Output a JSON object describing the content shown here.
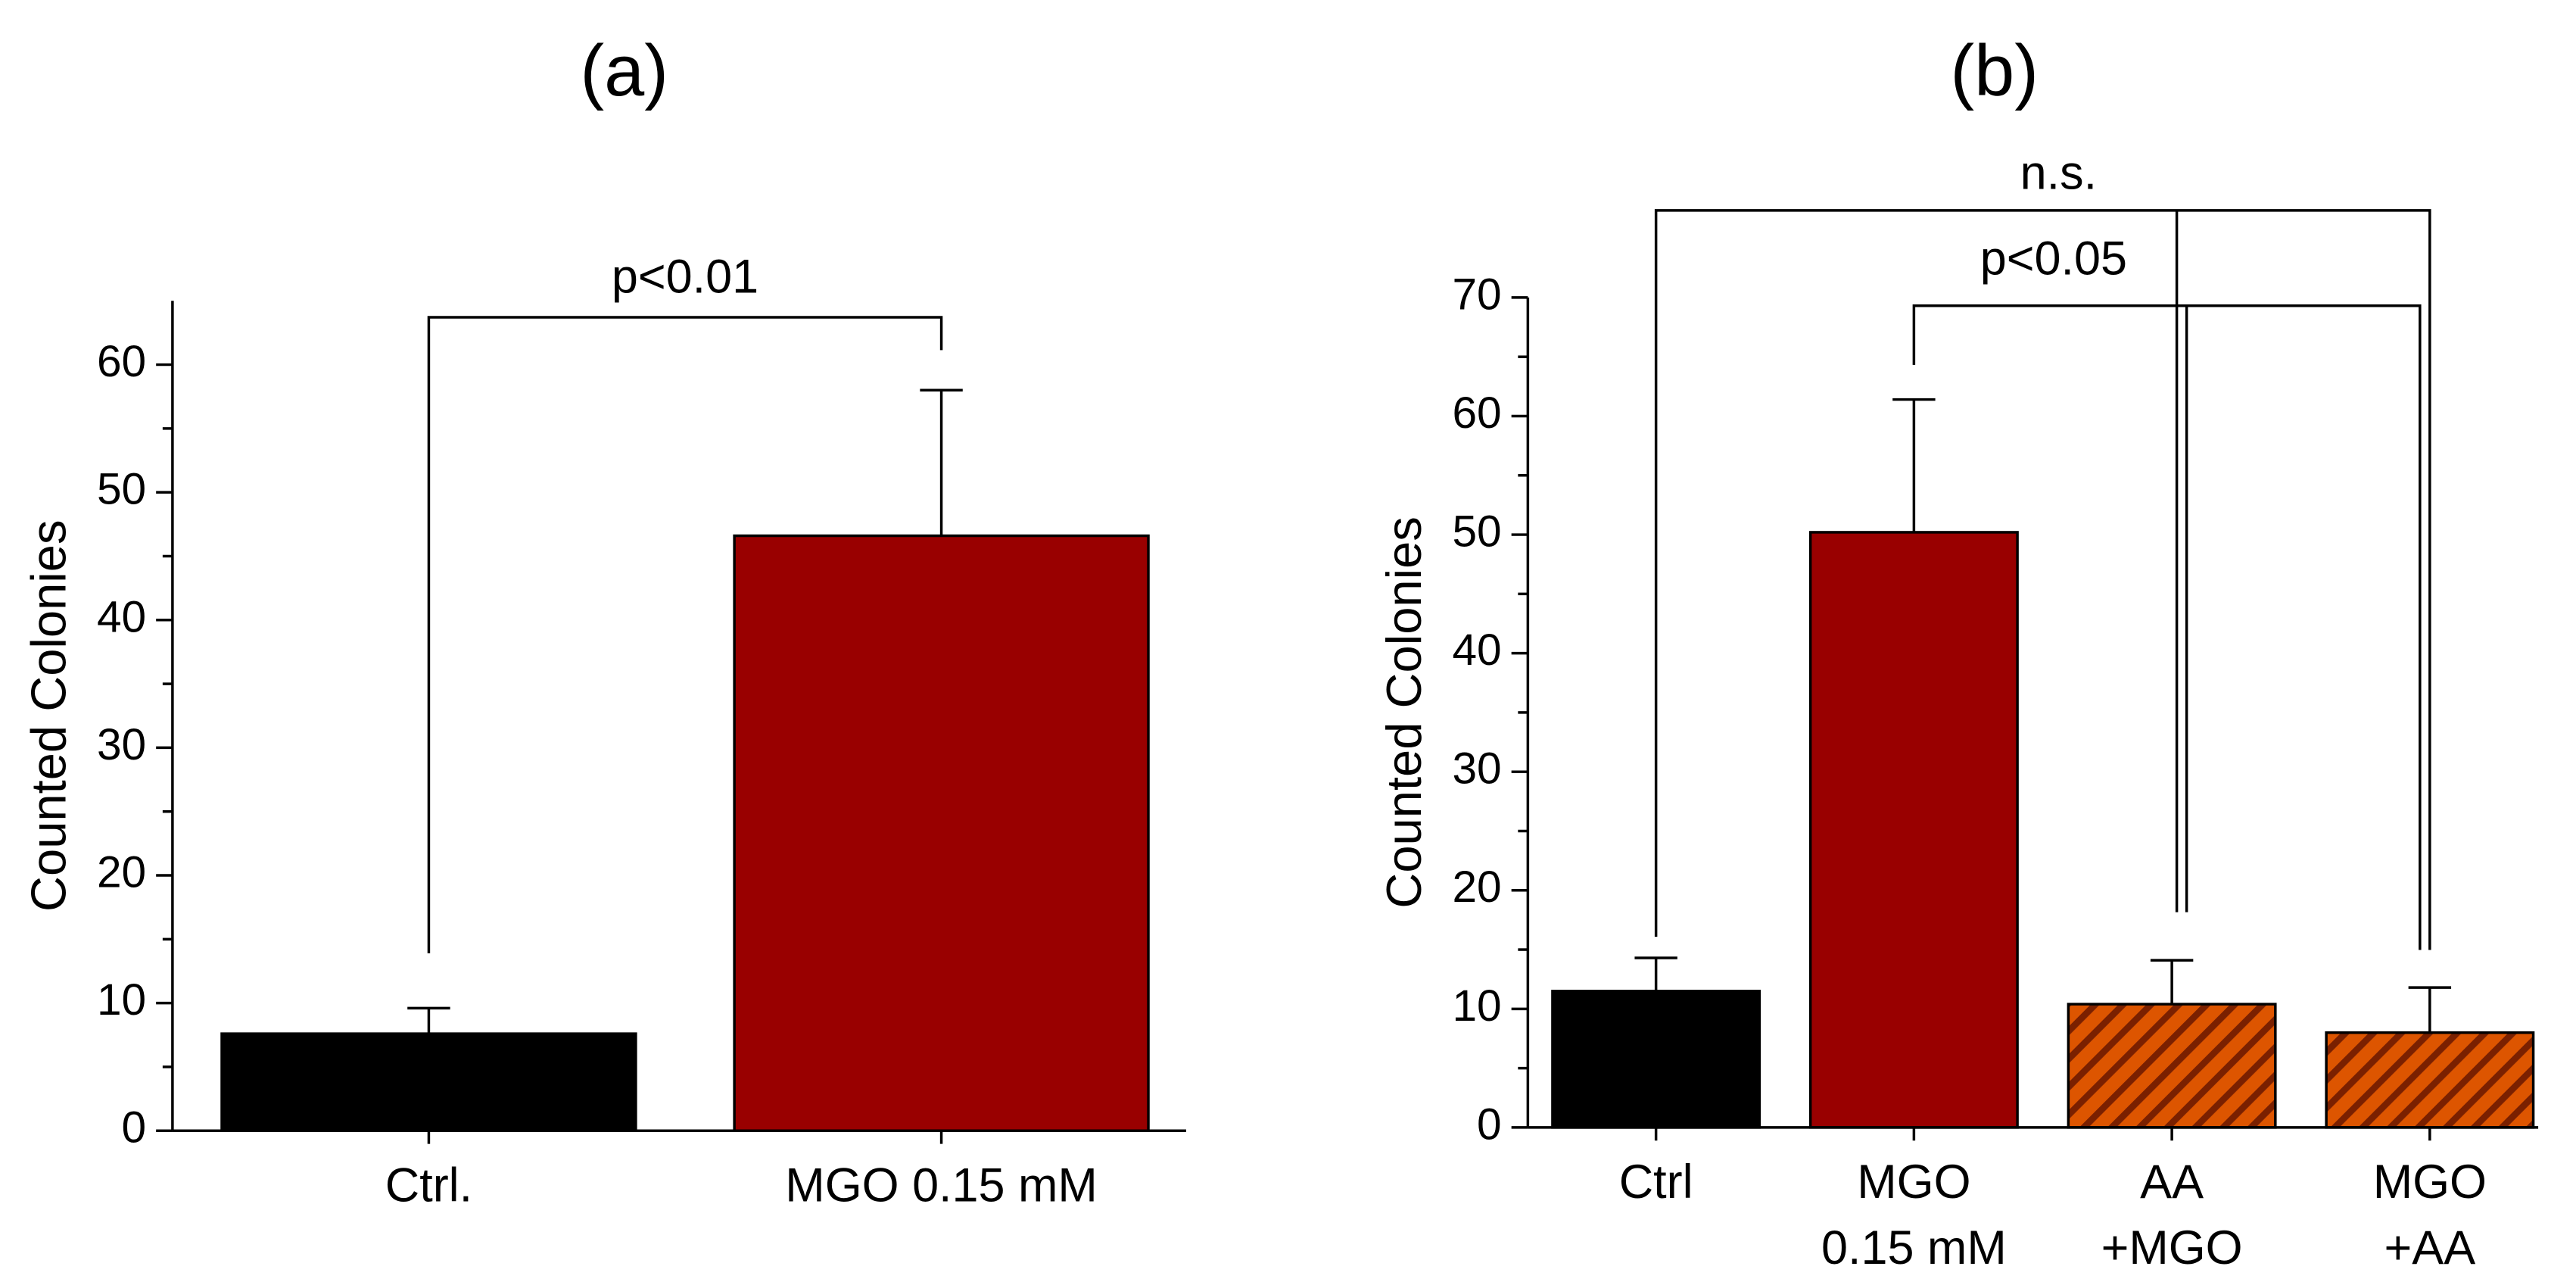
{
  "chart_data": [
    {
      "type": "bar",
      "title": "(a)",
      "ylabel": "Counted Colonies",
      "categories": [
        "Ctrl.",
        "MGO 0.15 mM"
      ],
      "values": [
        7.6,
        46.6
      ],
      "errors": [
        2.0,
        11.4
      ],
      "colors": [
        "#000000",
        "#990000"
      ],
      "hatched": [
        false,
        false
      ],
      "ylim": [
        0,
        65
      ],
      "yticks": [
        0,
        10,
        20,
        30,
        40,
        50,
        60
      ],
      "annotations": [
        "p<0.01"
      ]
    },
    {
      "type": "bar",
      "title": "(b)",
      "ylabel": "Counted Colonies",
      "categories": [
        "Ctrl",
        "MGO\n0.15 mM",
        "AA\n+MGO",
        "MGO\n+AA"
      ],
      "values": [
        11.5,
        50.2,
        10.4,
        8.0
      ],
      "errors": [
        2.8,
        11.2,
        3.7,
        3.8
      ],
      "colors": [
        "#000000",
        "#990000",
        "#dd5500",
        "#dd5500"
      ],
      "hatched": [
        false,
        false,
        true,
        true
      ],
      "ylim": [
        0,
        70
      ],
      "yticks": [
        0,
        10,
        20,
        30,
        40,
        50,
        60,
        70
      ],
      "annotations": [
        "n.s.",
        "p<0.05"
      ]
    }
  ]
}
